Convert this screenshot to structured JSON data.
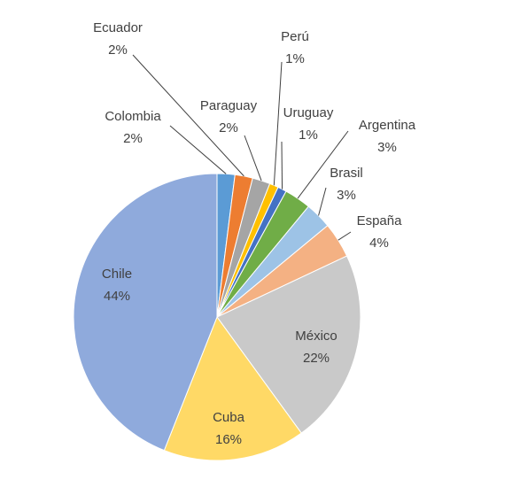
{
  "chart_data": {
    "type": "pie",
    "categories": [
      "Colombia",
      "Ecuador",
      "Paraguay",
      "Perú",
      "Uruguay",
      "Argentina",
      "Brasil",
      "España",
      "México",
      "Cuba",
      "Chile"
    ],
    "values": [
      2,
      2,
      2,
      1,
      1,
      3,
      3,
      4,
      22,
      16,
      44
    ],
    "value_labels": [
      "2%",
      "2%",
      "2%",
      "1%",
      "1%",
      "3%",
      "3%",
      "4%",
      "22%",
      "16%",
      "44%"
    ],
    "colors": [
      "#5b9bd5",
      "#ed7d31",
      "#a5a5a5",
      "#ffc000",
      "#4472c4",
      "#70ad47",
      "#9dc3e6",
      "#f4b183",
      "#c9c9c9",
      "#ffd966",
      "#8faadc"
    ]
  }
}
